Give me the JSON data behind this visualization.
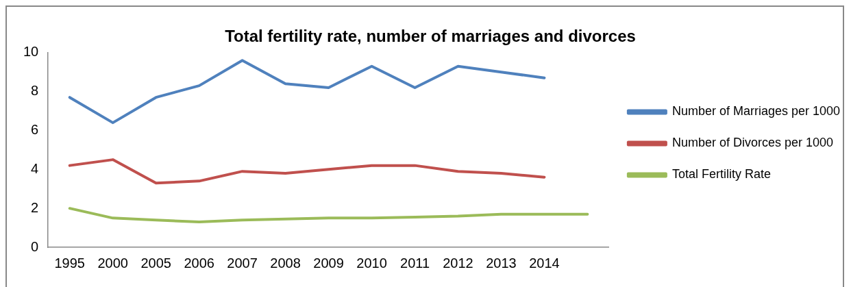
{
  "chart_data": {
    "type": "line",
    "title": "Total fertility rate, number of marriages and divorces",
    "categories": [
      "1995",
      "2000",
      "2005",
      "2006",
      "2007",
      "2008",
      "2009",
      "2010",
      "2011",
      "2012",
      "2013",
      "2014",
      null
    ],
    "series": [
      {
        "name": "Number of Marriages per 1000",
        "color": "#4f81bd",
        "values": [
          7.7,
          6.4,
          7.7,
          8.3,
          9.6,
          8.4,
          8.2,
          9.3,
          8.2,
          9.3,
          9.0,
          8.7,
          null
        ]
      },
      {
        "name": "Number of Divorces per 1000",
        "color": "#c0504d",
        "values": [
          4.2,
          4.5,
          3.3,
          3.4,
          3.9,
          3.8,
          4.0,
          4.2,
          4.2,
          3.9,
          3.8,
          3.6,
          null
        ]
      },
      {
        "name": "Total Fertility Rate",
        "color": "#9bbb59",
        "values": [
          2.0,
          1.5,
          1.4,
          1.3,
          1.4,
          1.45,
          1.5,
          1.5,
          1.55,
          1.6,
          1.7,
          1.7,
          1.7
        ]
      }
    ],
    "ylim": [
      0,
      10
    ],
    "yticks": [
      0,
      2,
      4,
      6,
      8,
      10
    ],
    "grid": false,
    "legend": "right",
    "marker": "none",
    "line_style": "solid"
  }
}
